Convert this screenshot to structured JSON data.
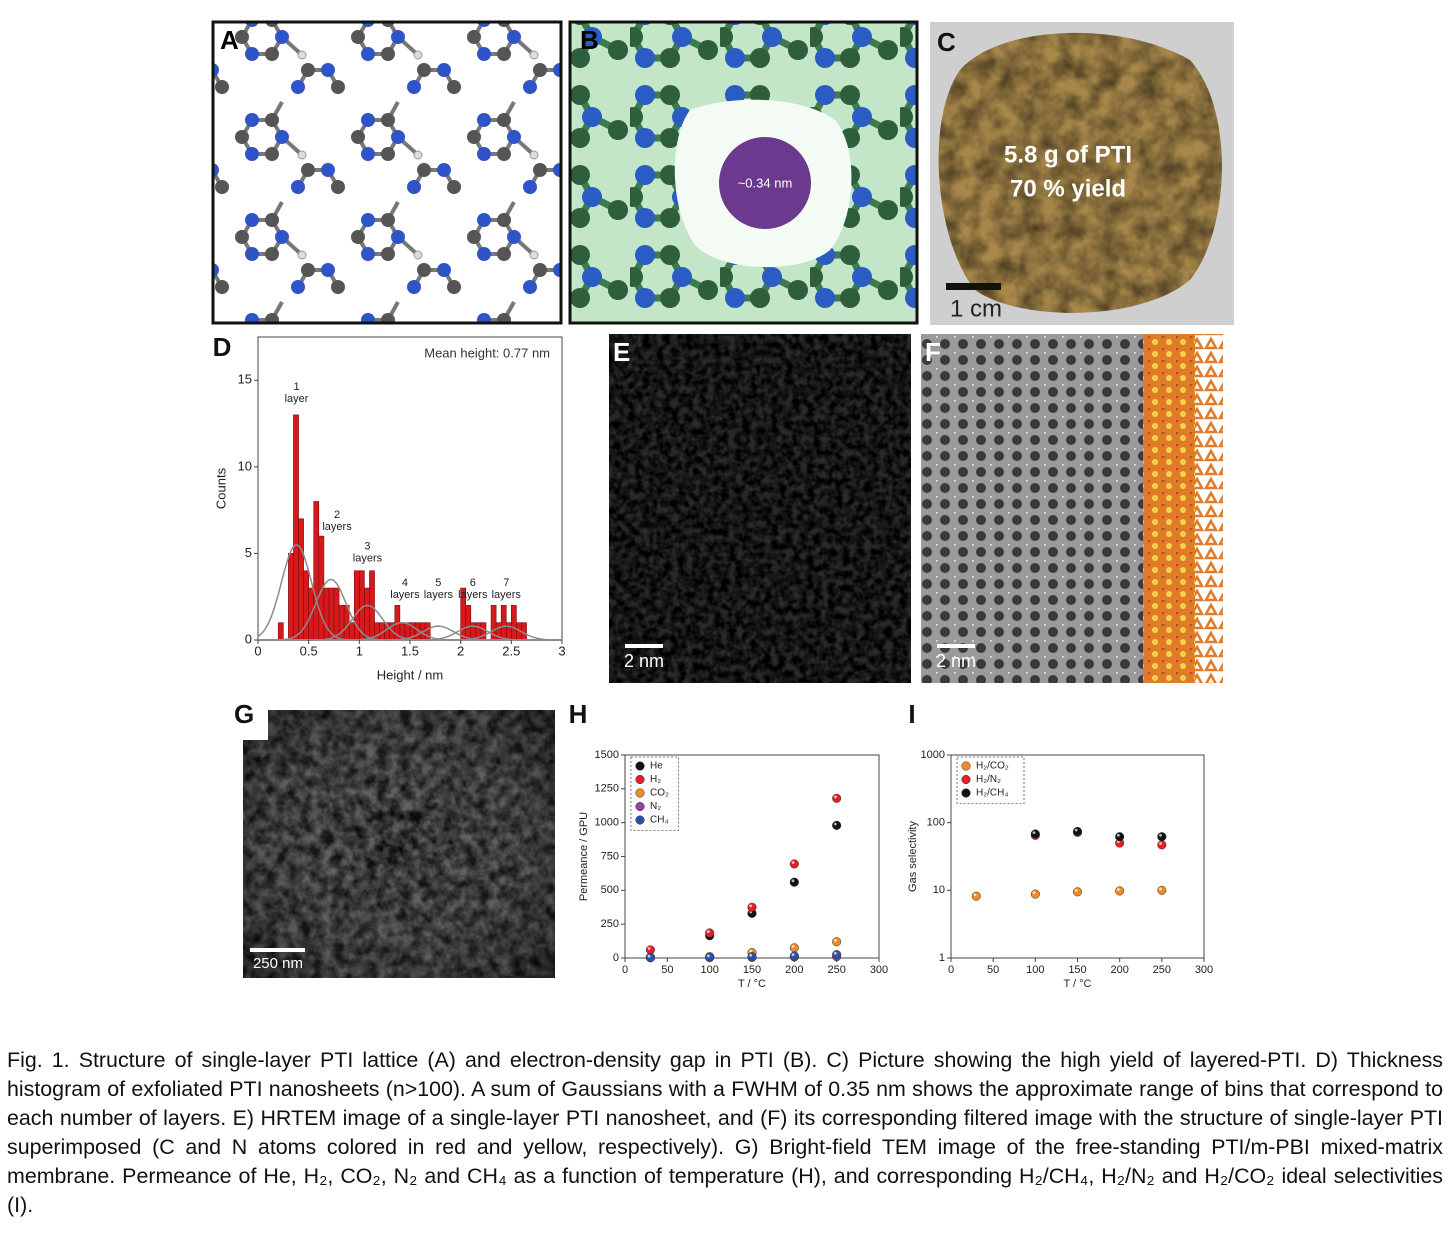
{
  "panels": {
    "a": {
      "label": "A"
    },
    "b": {
      "label": "B",
      "pore": "~0.34 nm"
    },
    "c": {
      "label": "C",
      "text": [
        "5.8 g of PTI",
        "70 % yield"
      ],
      "scale_bar": "1 cm"
    },
    "e": {
      "label": "E",
      "scale_bar": "2 nm"
    },
    "f": {
      "label": "F",
      "scale_bar": "2 nm"
    },
    "g": {
      "label": "G",
      "scale_bar": "250 nm"
    }
  },
  "chart_data": [
    {
      "type": "histogram",
      "panel_label": "D",
      "annotation": "Mean height: 0.77 nm",
      "bins": [
        0.2,
        0.25,
        0.3,
        0.35,
        0.4,
        0.45,
        0.5,
        0.55,
        0.6,
        0.65,
        0.7,
        0.75,
        0.8,
        0.85,
        0.9,
        0.95,
        1,
        1.05,
        1.1,
        1.15,
        1.2,
        1.25,
        1.3,
        1.35,
        1.4,
        1.45,
        1.5,
        1.55,
        1.6,
        1.65,
        1.7,
        1.75,
        1.8,
        1.85,
        1.9,
        1.95,
        2,
        2.05,
        2.1,
        2.15,
        2.2,
        2.25,
        2.3,
        2.35,
        2.4,
        2.45,
        2.5,
        2.55,
        2.6,
        2.65,
        2.7
      ],
      "counts": [
        1,
        0,
        5,
        13,
        7,
        4,
        3,
        8,
        6,
        3,
        3,
        3,
        2,
        2,
        1,
        4,
        4,
        3,
        4,
        1,
        1,
        1,
        1,
        2,
        1,
        1,
        1,
        1,
        1,
        1,
        0,
        0,
        0,
        0,
        0,
        0,
        3,
        2,
        1,
        1,
        1,
        0,
        2,
        1,
        2,
        1,
        2,
        1,
        1,
        0
      ],
      "color": "#d7191c",
      "fit": {
        "fwhm": 0.35,
        "centers": [
          0.38,
          0.72,
          1.08,
          1.42,
          1.78,
          2.12,
          2.45
        ],
        "heights": [
          5.5,
          3.5,
          2,
          1,
          0.8,
          0.8,
          0.8
        ],
        "color": "#8c8c8c"
      },
      "layer_labels": [
        [
          "1",
          "layer"
        ],
        [
          "2",
          "layers"
        ],
        [
          "3",
          "layers"
        ],
        [
          "4",
          "layers"
        ],
        [
          "5",
          "layers"
        ],
        [
          "6",
          "layers"
        ],
        [
          "7",
          "layers"
        ]
      ],
      "xlim": [
        0,
        3
      ],
      "ylim": [
        0,
        17.5
      ],
      "xticks": [
        0,
        0.5,
        1,
        1.5,
        2,
        2.5,
        3
      ],
      "yticks": [
        0,
        5,
        10,
        15
      ],
      "xlabel": "Height / nm",
      "ylabel": "Counts"
    },
    {
      "type": "scatter",
      "panel_label": "H",
      "log_y": false,
      "legend": "upper left",
      "x": [
        30,
        100,
        150,
        200,
        250
      ],
      "series": [
        {
          "name": "He",
          "color": "#111111",
          "values": [
            5,
            165,
            330,
            560,
            980
          ]
        },
        {
          "name": "H₂",
          "color": "#e0202a",
          "values": [
            60,
            185,
            375,
            695,
            1180
          ]
        },
        {
          "name": "CO₂",
          "color": "#f08a24",
          "values": [
            5,
            10,
            40,
            75,
            120
          ]
        },
        {
          "name": "N₂",
          "color": "#9b3fb0",
          "values": [
            2,
            3,
            5,
            8,
            10
          ]
        },
        {
          "name": "CH₄",
          "color": "#2a4fb0",
          "values": [
            3,
            5,
            10,
            15,
            25
          ]
        }
      ],
      "xlim": [
        0,
        300
      ],
      "ylim": [
        0,
        1500
      ],
      "xticks": [
        0,
        50,
        100,
        150,
        200,
        250,
        300
      ],
      "yticks": [
        0,
        250,
        500,
        750,
        1000,
        1250,
        1500
      ],
      "xlabel": "T / °C",
      "ylabel": "Permeance / GPU"
    },
    {
      "type": "scatter",
      "panel_label": "I",
      "log_y": true,
      "legend": "upper left",
      "x": [
        30,
        100,
        150,
        200,
        250
      ],
      "series": [
        {
          "name": "H₂/CO₂",
          "color": "#f08a24",
          "values": [
            8.2,
            8.8,
            9.5,
            9.8,
            10
          ]
        },
        {
          "name": "H₂/N₂",
          "color": "#e0202a",
          "values": [
            null,
            65,
            72,
            50,
            47
          ]
        },
        {
          "name": "H₂/CH₄",
          "color": "#111111",
          "values": [
            null,
            68,
            74,
            62,
            62
          ]
        }
      ],
      "xlim": [
        0,
        300
      ],
      "ylim": [
        1,
        1000
      ],
      "xticks": [
        0,
        50,
        100,
        150,
        200,
        250,
        300
      ],
      "yticks": [
        1,
        10,
        100,
        1000
      ],
      "xlabel": "T / °C",
      "ylabel": "Gas selectivity"
    }
  ],
  "caption": "Fig. 1. Structure of single-layer PTI lattice (A) and electron-density gap in PTI (B). C) Picture showing the high yield of layered-PTI. D) Thickness histogram of exfoliated PTI nanosheets (n>100). A sum of Gaussians with a FWHM of 0.35 nm shows the approximate range of bins that correspond to each number of layers. E) HRTEM image of a single-layer PTI nanosheet, and (F) its corresponding filtered image with the structure of single-layer PTI superimposed (C and N atoms colored in red and yellow, respectively). G) Bright-field TEM image of the free-standing PTI/m-PBI mixed-matrix membrane. Permeance of He, H₂, CO₂, N₂ and CH₄ as a function of temperature (H), and corresponding H₂/CH₄, H₂/N₂ and H₂/CO₂ ideal selectivities (I)."
}
